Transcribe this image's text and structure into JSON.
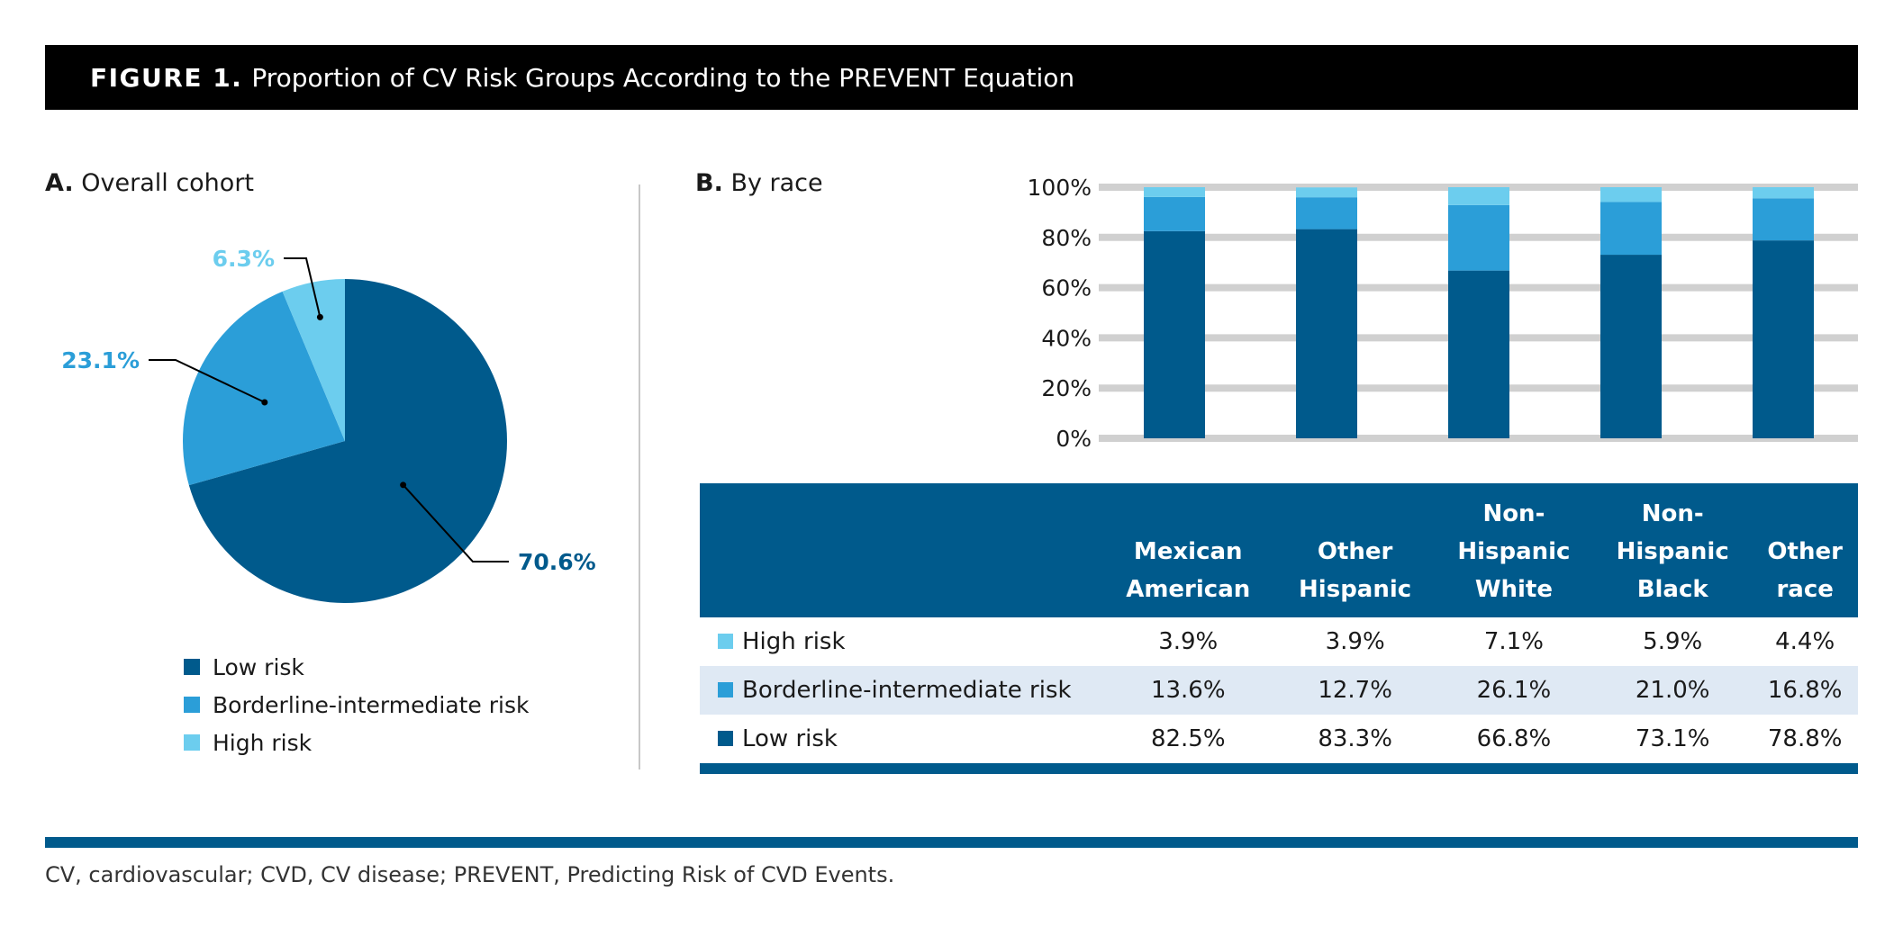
{
  "header": {
    "figure_label": "FIGURE 1.",
    "figure_title": "Proportion of CV Risk Groups According to the PREVENT Equation"
  },
  "panel_a": {
    "letter": "A.",
    "title": "Overall cohort"
  },
  "panel_b": {
    "letter": "B.",
    "title": "By race"
  },
  "colors": {
    "low": "#005a8c",
    "borderline": "#2b9ed8",
    "high": "#6ccdee",
    "grid": "#d0d0d0",
    "row_alt": "#dfe9f4"
  },
  "chart_data": [
    {
      "type": "pie",
      "labels": [
        "Low risk",
        "Borderline-intermediate risk",
        "High risk"
      ],
      "values": [
        70.6,
        23.1,
        6.3
      ],
      "data_labels": [
        "70.6%",
        "23.1%",
        "6.3%"
      ],
      "title": "Overall cohort"
    },
    {
      "type": "bar",
      "stacked": true,
      "title": "By race",
      "categories": [
        "Mexican American",
        "Other Hispanic",
        "Non-Hispanic White",
        "Non-Hispanic Black",
        "Other race"
      ],
      "series": [
        {
          "name": "Low risk",
          "values": [
            82.5,
            83.3,
            66.8,
            73.1,
            78.8
          ]
        },
        {
          "name": "Borderline-intermediate risk",
          "values": [
            13.6,
            12.7,
            26.1,
            21.0,
            16.8
          ]
        },
        {
          "name": "High risk",
          "values": [
            3.9,
            3.9,
            7.1,
            5.9,
            4.4
          ]
        }
      ],
      "ylim": [
        0,
        100
      ],
      "yticks": [
        "0%",
        "20%",
        "40%",
        "60%",
        "80%",
        "100%"
      ],
      "grid": true
    }
  ],
  "legend": [
    "Low risk",
    "Borderline-intermediate risk",
    "High risk"
  ],
  "table": {
    "headers": [
      [
        "Mexican",
        "American"
      ],
      [
        "Other",
        "Hispanic"
      ],
      [
        "Non-",
        "Hispanic",
        "White"
      ],
      [
        "Non-",
        "Hispanic",
        "Black"
      ],
      [
        "Other",
        "race"
      ]
    ],
    "rows": [
      {
        "label": "High risk",
        "values": [
          "3.9%",
          "3.9%",
          "7.1%",
          "5.9%",
          "4.4%"
        ]
      },
      {
        "label": "Borderline-intermediate risk",
        "values": [
          "13.6%",
          "12.7%",
          "26.1%",
          "21.0%",
          "16.8%"
        ]
      },
      {
        "label": "Low risk",
        "values": [
          "82.5%",
          "83.3%",
          "66.8%",
          "73.1%",
          "78.8%"
        ]
      }
    ]
  },
  "footnote": "CV, cardiovascular; CVD, CV disease; PREVENT, Predicting Risk of CVD Events."
}
